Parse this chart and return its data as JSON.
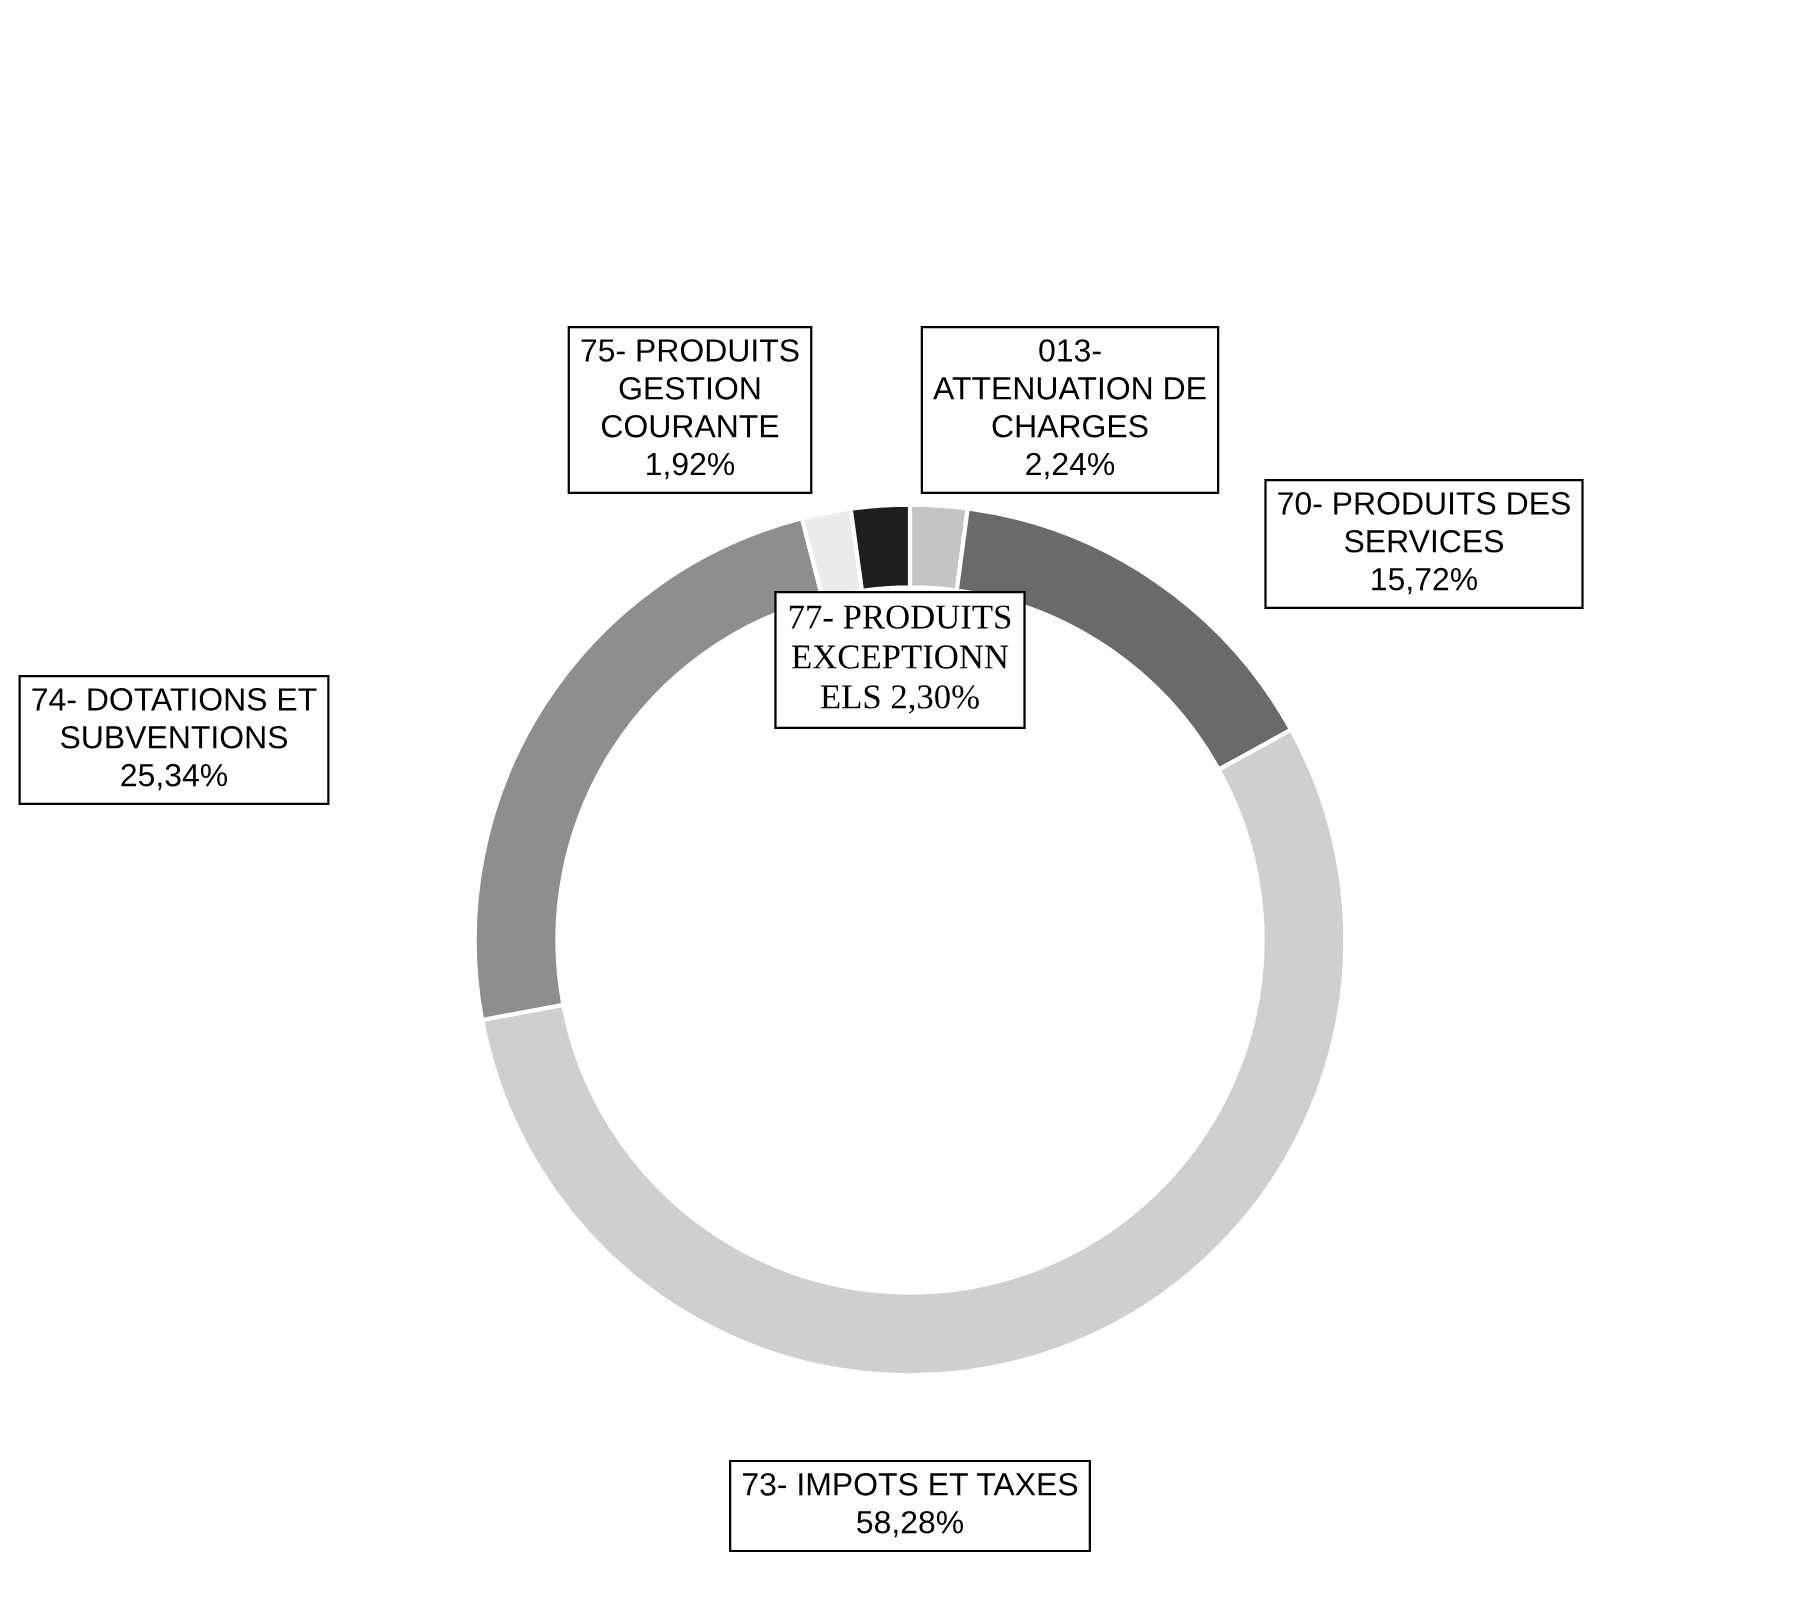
{
  "chart_data": {
    "type": "donut",
    "categories": [
      "013- ATTENUATION DE CHARGES",
      "70- PRODUITS DES SERVICES",
      "73- IMPOTS ET TAXES",
      "74- DOTATIONS ET SUBVENTIONS",
      "75- PRODUITS GESTION COURANTE",
      "77- PRODUITS EXCEPTIONNELS"
    ],
    "values": [
      2.24,
      15.72,
      58.28,
      25.34,
      1.92,
      2.3
    ],
    "value_labels": [
      "2,24%",
      "15,72%",
      "58,28%",
      "25,34%",
      "1,92%",
      "2,30%"
    ],
    "colors": [
      "#c4c4c4",
      "#6a6a6a",
      "#cfcfcf",
      "#8e8e8e",
      "#ebebeb",
      "#1e1e1e"
    ],
    "legend": false
  }
}
